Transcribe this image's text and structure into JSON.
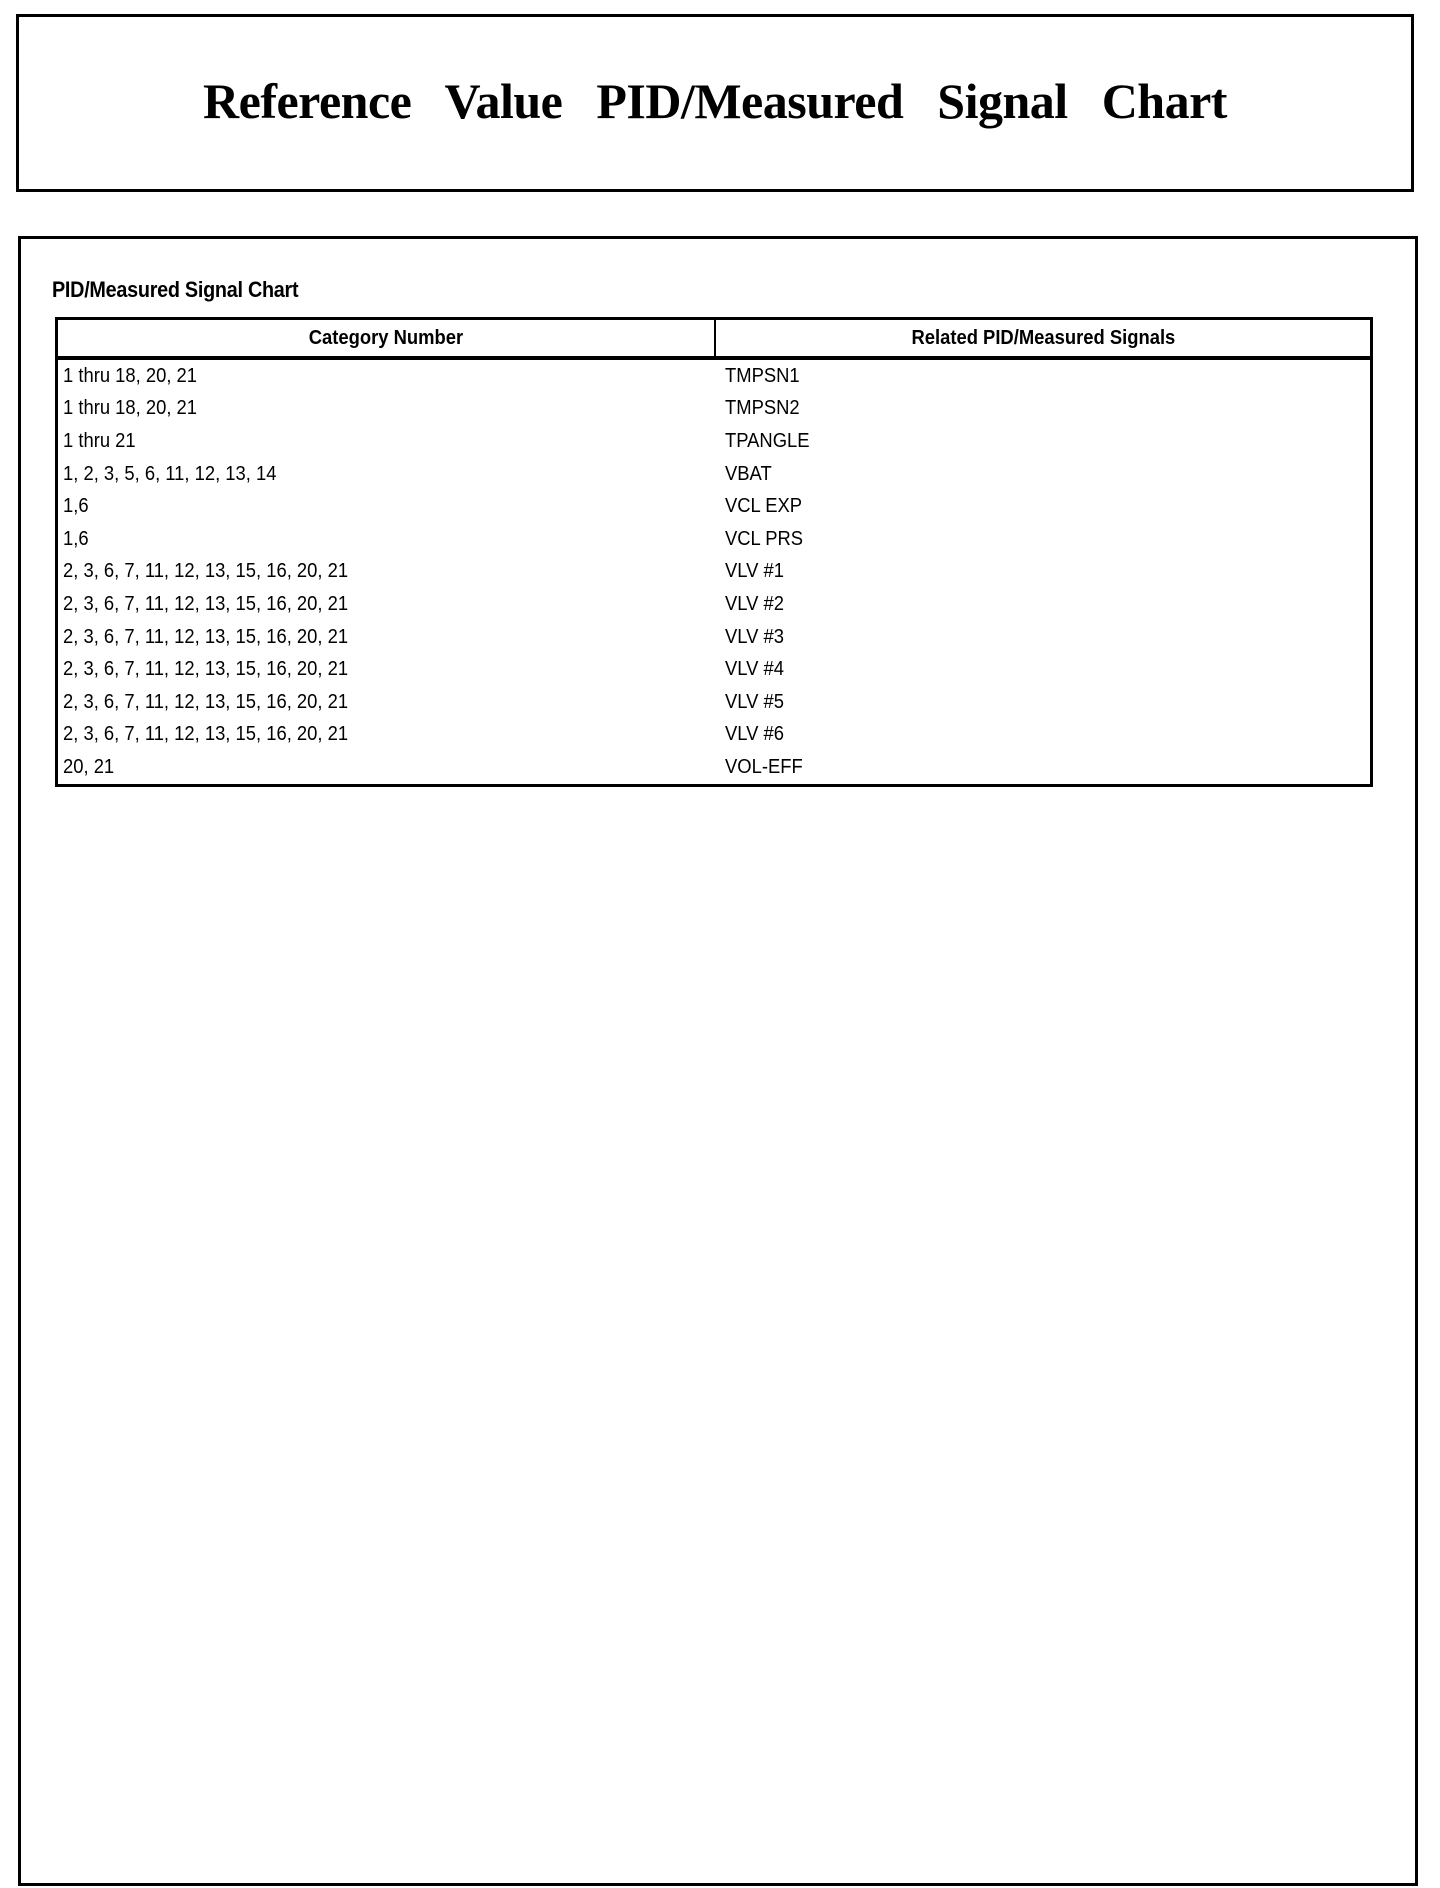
{
  "header": {
    "title": "Reference Value PID/Measured Signal Chart"
  },
  "main": {
    "subtitle": "PID/Measured Signal Chart",
    "table": {
      "columns": [
        "Category Number",
        "Related PID/Measured Signals"
      ],
      "rows": [
        [
          "1 thru 18, 20, 21",
          "TMPSN1"
        ],
        [
          "1 thru 18, 20, 21",
          "TMPSN2"
        ],
        [
          "1 thru 21",
          "TPANGLE"
        ],
        [
          "1, 2, 3, 5, 6, 11, 12, 13, 14",
          "VBAT"
        ],
        [
          "1,6",
          "VCL EXP"
        ],
        [
          "1,6",
          "VCL PRS"
        ],
        [
          "2, 3, 6, 7, 11, 12, 13, 15, 16, 20, 21",
          "VLV #1"
        ],
        [
          "2, 3, 6, 7, 11, 12, 13, 15, 16, 20, 21",
          "VLV #2"
        ],
        [
          "2, 3, 6, 7, 11, 12, 13, 15, 16, 20, 21",
          "VLV #3"
        ],
        [
          "2, 3, 6, 7, 11, 12, 13, 15, 16, 20, 21",
          "VLV #4"
        ],
        [
          "2, 3, 6, 7, 11, 12, 13, 15, 16, 20, 21",
          "VLV #5"
        ],
        [
          "2, 3, 6, 7, 11, 12, 13, 15, 16, 20, 21",
          "VLV #6"
        ],
        [
          "20, 21",
          "VOL-EFF"
        ]
      ]
    }
  }
}
